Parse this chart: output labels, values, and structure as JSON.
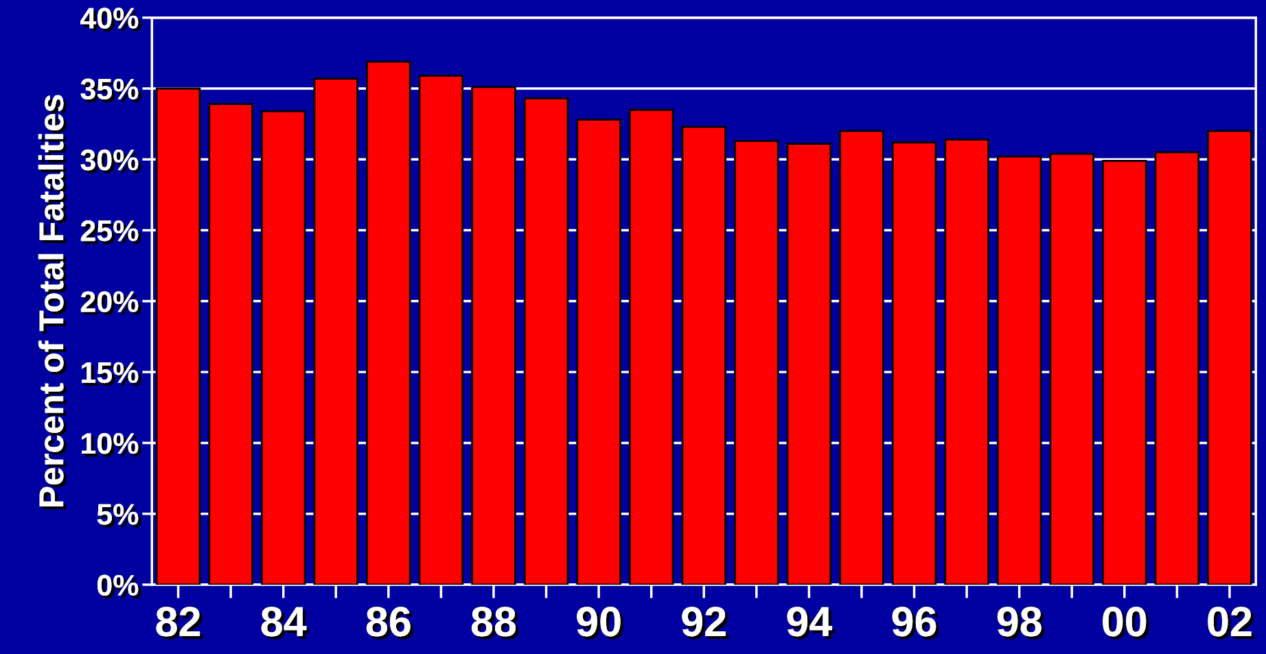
{
  "chart_data": {
    "type": "bar",
    "ylabel": "Percent of Total Fatalities",
    "categories": [
      "82",
      null,
      "84",
      null,
      "86",
      null,
      "88",
      null,
      "90",
      null,
      "92",
      null,
      "94",
      null,
      "96",
      null,
      "98",
      null,
      "00",
      null,
      "02"
    ],
    "values": [
      35.0,
      33.9,
      33.4,
      35.7,
      36.9,
      35.9,
      35.1,
      34.3,
      32.8,
      33.5,
      32.3,
      31.3,
      31.1,
      32.0,
      31.2,
      31.4,
      30.2,
      30.4,
      29.9,
      30.5,
      32.0
    ],
    "color": "#ff0000",
    "ylim": [
      0,
      40
    ],
    "yticks": [
      {
        "value": 0,
        "label": "0%"
      },
      {
        "value": 5,
        "label": "5%"
      },
      {
        "value": 10,
        "label": "10%"
      },
      {
        "value": 15,
        "label": "15%"
      },
      {
        "value": 20,
        "label": "20%"
      },
      {
        "value": 25,
        "label": "25%"
      },
      {
        "value": 30,
        "label": "30%"
      },
      {
        "value": 35,
        "label": "35%"
      },
      {
        "value": 40,
        "label": "40%"
      }
    ],
    "grid": "y"
  }
}
